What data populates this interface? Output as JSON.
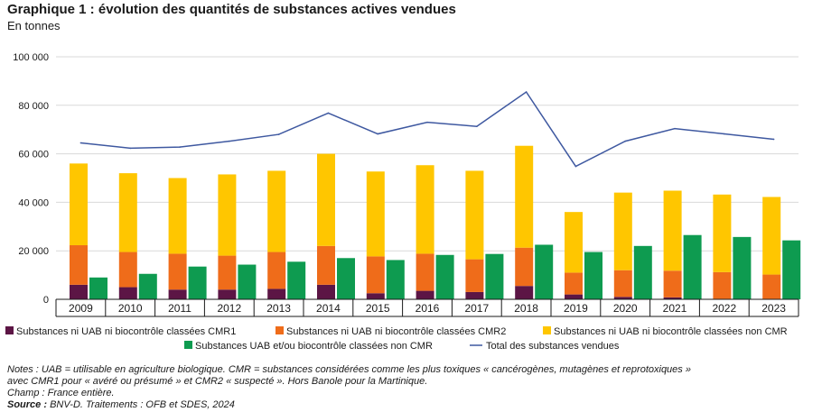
{
  "title": "Graphique 1 : évolution des quantités de substances actives vendues",
  "subtitle": "En tonnes",
  "colors": {
    "cmr1": "#5c1545",
    "cmr2": "#ef6c1a",
    "non_cmr": "#ffc600",
    "uab": "#0e9b50",
    "total": "#3e58a0",
    "grid": "#d9d9d9",
    "axis": "#1a1a1a"
  },
  "chart_data": {
    "type": "bar",
    "categories": [
      "2009",
      "2010",
      "2011",
      "2012",
      "2013",
      "2014",
      "2015",
      "2016",
      "2017",
      "2018",
      "2019",
      "2020",
      "2021",
      "2022",
      "2023"
    ],
    "ylim": [
      0,
      100000
    ],
    "yticks": [
      0,
      20000,
      40000,
      60000,
      80000,
      100000
    ],
    "ytick_labels": [
      "0",
      "20 000",
      "40 000",
      "60 000",
      "80 000",
      "100 000"
    ],
    "grid": true,
    "legend_position": "bottom",
    "stacked_series": [
      {
        "name": "Substances ni UAB ni biocontrôle classées CMR1",
        "color_key": "cmr1",
        "values": [
          6000,
          5000,
          4000,
          4000,
          4300,
          6000,
          2500,
          3500,
          3000,
          5500,
          2000,
          1000,
          800,
          200,
          200
        ]
      },
      {
        "name": "Substances ni UAB ni biocontrôle classées CMR2",
        "color_key": "cmr2",
        "values": [
          16300,
          14500,
          14800,
          14000,
          15200,
          16000,
          15200,
          15300,
          13500,
          15800,
          9000,
          11000,
          11000,
          11000,
          10000
        ]
      },
      {
        "name": "Substances ni UAB ni biocontrôle classées non CMR",
        "color_key": "non_cmr",
        "values": [
          33700,
          32500,
          31200,
          33500,
          33500,
          38000,
          35000,
          36500,
          36500,
          42000,
          25000,
          32000,
          33000,
          32000,
          32000
        ]
      }
    ],
    "side_series": {
      "name": "Substances UAB et/ou biocontrôle classées non CMR",
      "color_key": "uab",
      "values": [
        9000,
        10500,
        13500,
        14300,
        15500,
        17000,
        16200,
        18300,
        18700,
        22500,
        19500,
        22000,
        26500,
        25700,
        24300
      ]
    },
    "line_series": {
      "name": "Total des substances vendues",
      "color_key": "total",
      "values": [
        64500,
        62300,
        62800,
        65200,
        68000,
        76800,
        68200,
        73000,
        71300,
        85500,
        54800,
        65200,
        70400,
        68200,
        66000
      ]
    }
  },
  "legend": {
    "row1": [
      "Substances ni UAB ni biocontrôle classées CMR1",
      "Substances ni UAB ni biocontrôle classées CMR2",
      "Substances ni UAB ni biocontrôle classées non CMR"
    ],
    "row2": [
      "Substances UAB et/ou biocontrôle classées non CMR",
      "Total des substances vendues"
    ]
  },
  "notes": {
    "line1": "Notes : UAB = utilisable en agriculture biologique. CMR = substances considérées comme les plus toxiques « cancérogènes, mutagènes et reprotoxiques »",
    "line2": "avec CMR1 pour « avéré ou présumé » et CMR2 « suspecté ». Hors Banole pour la Martinique.",
    "line3": "Champ : France entière.",
    "source_label": "Source :",
    "source_text": " BNV-D. Traitements : OFB et SDES, 2024"
  }
}
